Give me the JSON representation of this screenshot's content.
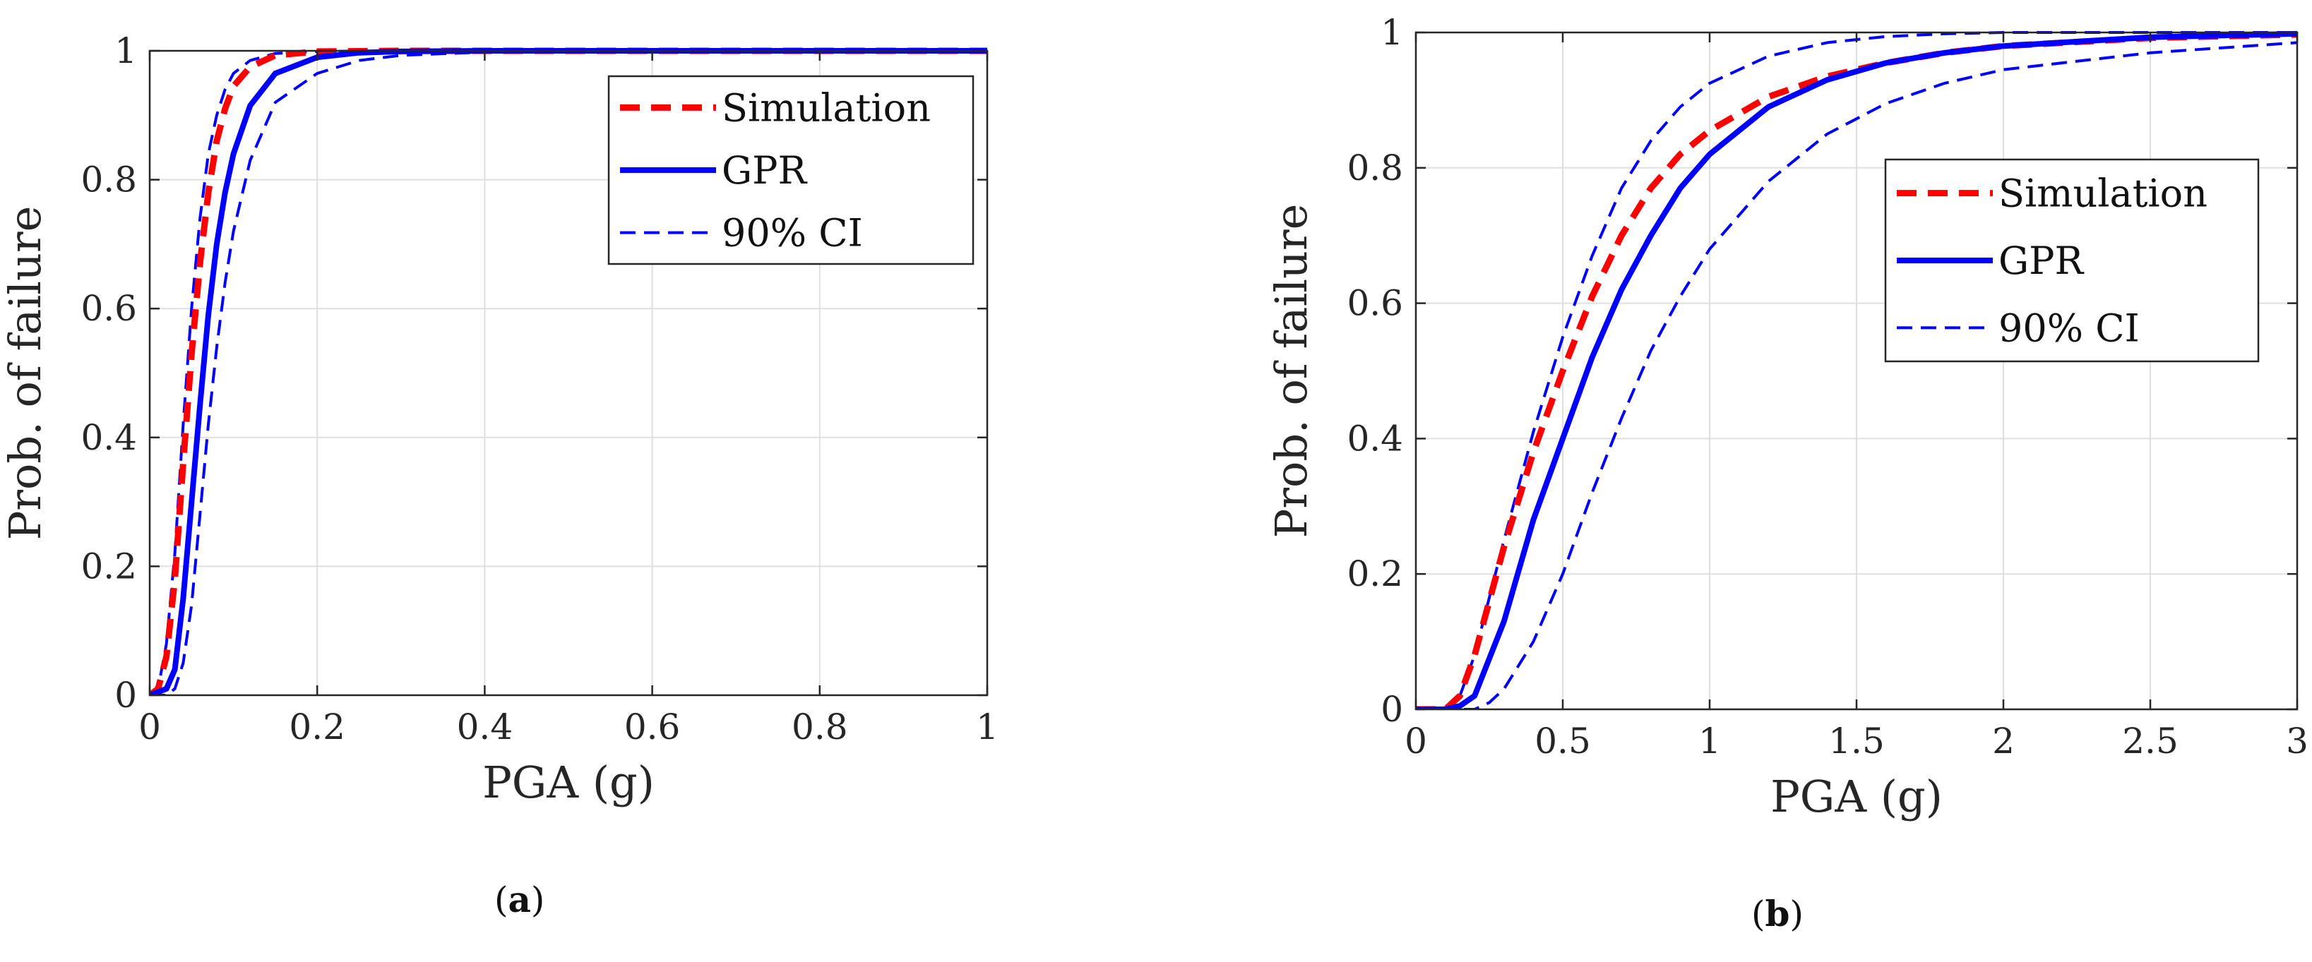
{
  "chart_data": [
    {
      "type": "line",
      "panel_label": "a",
      "xlabel": "PGA (g)",
      "ylabel": "Prob. of failure",
      "xlim": [
        0,
        1
      ],
      "ylim": [
        0,
        1
      ],
      "xticks": [
        0,
        0.2,
        0.4,
        0.6,
        0.8,
        1
      ],
      "xtick_labels": [
        "0",
        "0.2",
        "0.4",
        "0.6",
        "0.8",
        "1"
      ],
      "yticks": [
        0,
        0.2,
        0.4,
        0.6,
        0.8,
        1
      ],
      "ytick_labels": [
        "0",
        "0.2",
        "0.4",
        "0.6",
        "0.8",
        "1"
      ],
      "grid": true,
      "legend_position": "top-right",
      "series": [
        {
          "name": "Simulation",
          "color": "#ff0000",
          "style": "dashed-thick",
          "x": [
            0,
            0.01,
            0.02,
            0.03,
            0.04,
            0.05,
            0.06,
            0.07,
            0.08,
            0.09,
            0.1,
            0.12,
            0.15,
            0.2,
            0.3,
            0.5,
            1.0
          ],
          "y": [
            0,
            0.01,
            0.06,
            0.18,
            0.36,
            0.53,
            0.67,
            0.78,
            0.86,
            0.91,
            0.945,
            0.975,
            0.993,
            0.999,
            1,
            1,
            1
          ]
        },
        {
          "name": "GPR",
          "color": "#0000ff",
          "style": "solid-thick",
          "x": [
            0,
            0.02,
            0.03,
            0.04,
            0.05,
            0.06,
            0.07,
            0.08,
            0.09,
            0.1,
            0.12,
            0.15,
            0.2,
            0.25,
            0.3,
            0.4,
            0.5,
            1.0
          ],
          "y": [
            0,
            0.01,
            0.04,
            0.15,
            0.3,
            0.45,
            0.59,
            0.7,
            0.78,
            0.84,
            0.915,
            0.965,
            0.99,
            0.997,
            0.999,
            1,
            1,
            1
          ]
        },
        {
          "name": "90% CI",
          "color": "#0000ff",
          "style": "dashed-thin",
          "x": [
            0,
            0.01,
            0.02,
            0.03,
            0.04,
            0.05,
            0.06,
            0.07,
            0.08,
            0.09,
            0.1,
            0.12,
            0.15,
            0.2,
            0.3,
            0.5,
            1.0
          ],
          "y": [
            0,
            0.01,
            0.08,
            0.22,
            0.42,
            0.6,
            0.74,
            0.84,
            0.9,
            0.94,
            0.965,
            0.985,
            0.996,
            0.999,
            1,
            1,
            1
          ]
        },
        {
          "name": "90% CI (lower)",
          "color": "#0000ff",
          "style": "dashed-thin",
          "in_legend": false,
          "x": [
            0,
            0.02,
            0.03,
            0.04,
            0.05,
            0.06,
            0.07,
            0.08,
            0.09,
            0.1,
            0.12,
            0.15,
            0.2,
            0.25,
            0.3,
            0.4,
            0.5,
            1.0
          ],
          "y": [
            0,
            0,
            0.01,
            0.05,
            0.14,
            0.28,
            0.42,
            0.54,
            0.64,
            0.72,
            0.83,
            0.92,
            0.965,
            0.985,
            0.993,
            0.998,
            1,
            1
          ]
        }
      ]
    },
    {
      "type": "line",
      "panel_label": "b",
      "xlabel": "PGA (g)",
      "ylabel": "Prob. of failure",
      "xlim": [
        0,
        3
      ],
      "ylim": [
        0,
        1
      ],
      "xticks": [
        0,
        0.5,
        1,
        1.5,
        2,
        2.5,
        3
      ],
      "xtick_labels": [
        "0",
        "0.5",
        "1",
        "1.5",
        "2",
        "2.5",
        "3"
      ],
      "yticks": [
        0,
        0.2,
        0.4,
        0.6,
        0.8,
        1
      ],
      "ytick_labels": [
        "0",
        "0.2",
        "0.4",
        "0.6",
        "0.8",
        "1"
      ],
      "grid": true,
      "legend_position": "top-right",
      "series": [
        {
          "name": "Simulation",
          "color": "#ff0000",
          "style": "dashed-thick",
          "x": [
            0,
            0.1,
            0.15,
            0.2,
            0.3,
            0.4,
            0.5,
            0.6,
            0.7,
            0.8,
            0.9,
            1.0,
            1.2,
            1.4,
            1.6,
            1.8,
            2.0,
            2.5,
            3.0
          ],
          "y": [
            0,
            0,
            0.02,
            0.08,
            0.24,
            0.38,
            0.5,
            0.61,
            0.7,
            0.77,
            0.82,
            0.855,
            0.905,
            0.935,
            0.955,
            0.97,
            0.98,
            0.992,
            0.997
          ]
        },
        {
          "name": "GPR",
          "color": "#0000ff",
          "style": "solid-thick",
          "x": [
            0,
            0.1,
            0.15,
            0.2,
            0.3,
            0.4,
            0.5,
            0.6,
            0.7,
            0.8,
            0.9,
            1.0,
            1.2,
            1.4,
            1.6,
            1.8,
            2.0,
            2.5,
            3.0
          ],
          "y": [
            0,
            0,
            0.005,
            0.02,
            0.13,
            0.28,
            0.4,
            0.52,
            0.62,
            0.7,
            0.77,
            0.82,
            0.89,
            0.93,
            0.955,
            0.97,
            0.98,
            0.993,
            0.998
          ]
        },
        {
          "name": "90% CI",
          "color": "#0000ff",
          "style": "dashed-thin",
          "x": [
            0,
            0.1,
            0.15,
            0.2,
            0.3,
            0.4,
            0.5,
            0.6,
            0.7,
            0.8,
            0.9,
            1.0,
            1.2,
            1.4,
            1.6,
            1.8,
            2.0,
            2.5,
            3.0
          ],
          "y": [
            0,
            0,
            0.02,
            0.08,
            0.25,
            0.41,
            0.55,
            0.67,
            0.77,
            0.84,
            0.89,
            0.925,
            0.965,
            0.985,
            0.994,
            0.998,
            1.0,
            1.0,
            1.0
          ]
        },
        {
          "name": "90% CI (lower)",
          "color": "#0000ff",
          "style": "dashed-thin",
          "in_legend": false,
          "x": [
            0,
            0.2,
            0.25,
            0.3,
            0.4,
            0.5,
            0.6,
            0.7,
            0.8,
            0.9,
            1.0,
            1.2,
            1.4,
            1.6,
            1.8,
            2.0,
            2.5,
            3.0
          ],
          "y": [
            0,
            0,
            0.01,
            0.03,
            0.1,
            0.2,
            0.32,
            0.43,
            0.53,
            0.61,
            0.68,
            0.78,
            0.85,
            0.895,
            0.925,
            0.945,
            0.97,
            0.985
          ]
        }
      ]
    }
  ]
}
